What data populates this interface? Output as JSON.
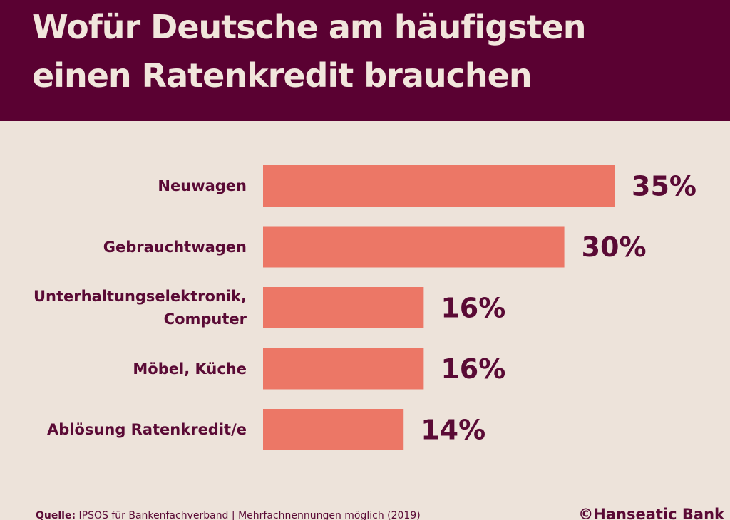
{
  "chart_data": {
    "type": "bar",
    "orientation": "horizontal",
    "title": "Wofür Deutsche am häufigsten einen Ratenkredit brauchen",
    "categories": [
      "Neuwagen",
      "Gebrauchtwagen",
      "Unterhaltungselektronik, Computer",
      "Möbel, Küche",
      "Ablösung Ratenkredit/e"
    ],
    "values": [
      35,
      30,
      16,
      16,
      14
    ],
    "value_labels": [
      "35%",
      "30%",
      "16%",
      "16%",
      "14%"
    ],
    "color": "#ec7766",
    "source_label": "Quelle:",
    "source": "IPSOS für Bankenfachverband | Mehrfachnennungen möglich (2019)",
    "copyright": "©Hanseatic Bank"
  }
}
